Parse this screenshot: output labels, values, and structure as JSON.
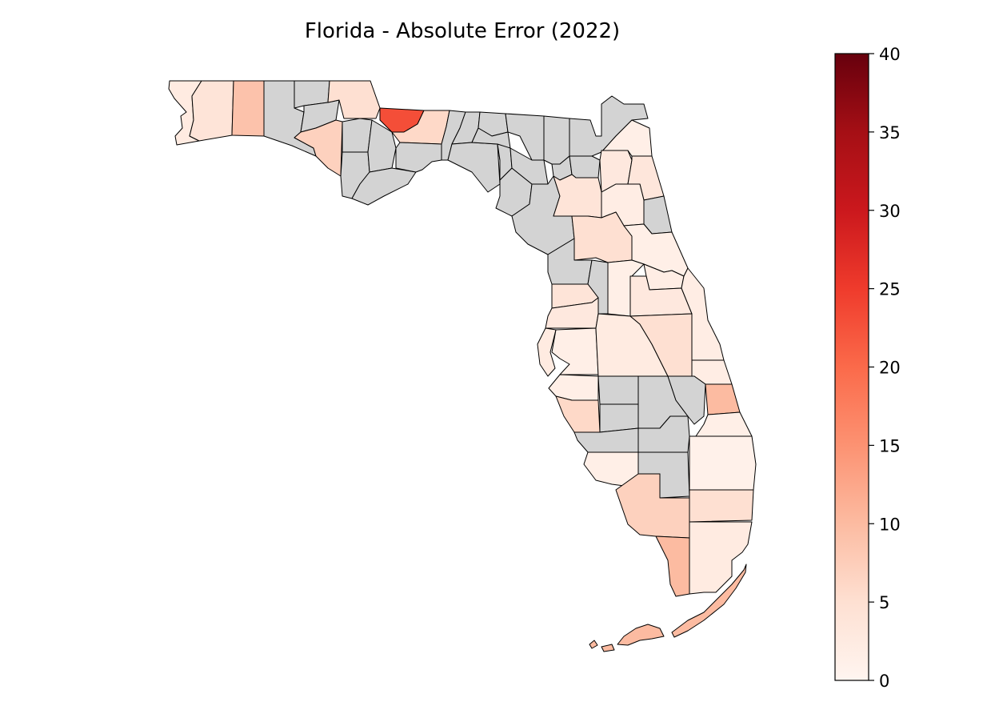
{
  "title": "Florida - Absolute Error (2022)",
  "colorbar": {
    "min": 0,
    "max": 40,
    "ticks": [
      0,
      5,
      10,
      15,
      20,
      25,
      30,
      35,
      40
    ],
    "tick_labels": [
      "0",
      "5",
      "10",
      "15",
      "20",
      "25",
      "30",
      "35",
      "40"
    ],
    "colormap": "Reds",
    "stops": [
      "#fff5f0",
      "#fee0d2",
      "#fcbba1",
      "#fc9272",
      "#fb6a4a",
      "#ef3b2c",
      "#cb181d",
      "#a50f15",
      "#67000d"
    ]
  },
  "no_data_color": "#d3d3d3",
  "chart_data": {
    "type": "choropleth",
    "title": "Florida - Absolute Error (2022)",
    "value_range": [
      0,
      40
    ],
    "counties": [
      {
        "id": "escambia",
        "value": 2.5
      },
      {
        "id": "santa-rosa",
        "value": 4.0
      },
      {
        "id": "okaloosa",
        "value": 9.0
      },
      {
        "id": "walton",
        "value": null
      },
      {
        "id": "holmes",
        "value": null
      },
      {
        "id": "washington",
        "value": null
      },
      {
        "id": "bay",
        "value": 7.0
      },
      {
        "id": "jackson",
        "value": 5.0
      },
      {
        "id": "calhoun",
        "value": null
      },
      {
        "id": "gulf",
        "value": null
      },
      {
        "id": "liberty",
        "value": null
      },
      {
        "id": "franklin",
        "value": null
      },
      {
        "id": "gadsden",
        "value": 23.0
      },
      {
        "id": "leon",
        "value": 6.0
      },
      {
        "id": "wakulla",
        "value": null
      },
      {
        "id": "jefferson",
        "value": null
      },
      {
        "id": "madison",
        "value": null
      },
      {
        "id": "taylor",
        "value": null
      },
      {
        "id": "hamilton",
        "value": null
      },
      {
        "id": "suwannee",
        "value": null
      },
      {
        "id": "lafayette",
        "value": null
      },
      {
        "id": "dixie",
        "value": null
      },
      {
        "id": "columbia",
        "value": null
      },
      {
        "id": "gilchrist",
        "value": null
      },
      {
        "id": "levy",
        "value": null
      },
      {
        "id": "baker",
        "value": null
      },
      {
        "id": "union",
        "value": null
      },
      {
        "id": "bradford",
        "value": null
      },
      {
        "id": "nassau",
        "value": null
      },
      {
        "id": "duval",
        "value": 1.5
      },
      {
        "id": "clay",
        "value": 3.0
      },
      {
        "id": "st-johns",
        "value": 3.5
      },
      {
        "id": "putnam",
        "value": 2.0
      },
      {
        "id": "alachua",
        "value": 4.0
      },
      {
        "id": "flagler",
        "value": null
      },
      {
        "id": "marion",
        "value": 5.0
      },
      {
        "id": "volusia",
        "value": 1.5
      },
      {
        "id": "citrus",
        "value": null
      },
      {
        "id": "sumter",
        "value": null
      },
      {
        "id": "lake",
        "value": 1.5
      },
      {
        "id": "seminole",
        "value": 2.0
      },
      {
        "id": "hernando",
        "value": 4.0
      },
      {
        "id": "orange",
        "value": 3.0
      },
      {
        "id": "brevard",
        "value": 2.0
      },
      {
        "id": "pasco",
        "value": 3.0
      },
      {
        "id": "pinellas",
        "value": 2.5
      },
      {
        "id": "hillsborough",
        "value": 1.5
      },
      {
        "id": "polk",
        "value": 2.5
      },
      {
        "id": "osceola",
        "value": 5.0
      },
      {
        "id": "indian-river",
        "value": 2.0
      },
      {
        "id": "manatee",
        "value": 1.5
      },
      {
        "id": "hardee",
        "value": null
      },
      {
        "id": "highlands",
        "value": null
      },
      {
        "id": "okeechobee",
        "value": null
      },
      {
        "id": "st-lucie",
        "value": 10.0
      },
      {
        "id": "sarasota",
        "value": 6.0
      },
      {
        "id": "desoto",
        "value": null
      },
      {
        "id": "martin",
        "value": 1.5
      },
      {
        "id": "charlotte",
        "value": null
      },
      {
        "id": "glades",
        "value": null
      },
      {
        "id": "lee",
        "value": 1.5
      },
      {
        "id": "hendry",
        "value": null
      },
      {
        "id": "palm-beach",
        "value": 1.0
      },
      {
        "id": "collier",
        "value": 7.0
      },
      {
        "id": "broward",
        "value": 5.0
      },
      {
        "id": "monroe",
        "value": 10.0
      },
      {
        "id": "miami-dade",
        "value": 2.5
      },
      {
        "id": "monroe-keys",
        "value": 10.0
      }
    ]
  }
}
